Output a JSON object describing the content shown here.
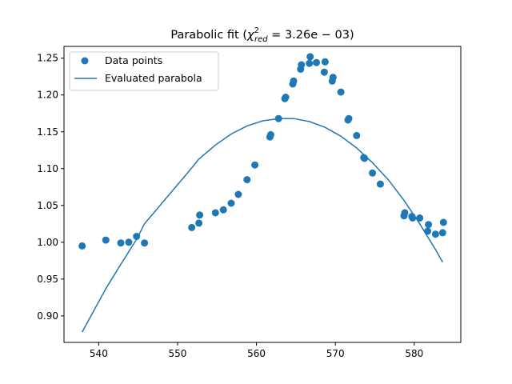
{
  "chart_data": {
    "type": "scatter",
    "title": {
      "prefix": "Parabolic fit (",
      "symbol": "χ",
      "superscript": "2",
      "subscript": "red",
      "value": " = 3.26e − 03)"
    },
    "xlabel": "",
    "ylabel": "",
    "xlim": [
      535.6,
      585.9
    ],
    "ylim": [
      0.864,
      1.266
    ],
    "xticks": [
      540,
      550,
      560,
      570,
      580
    ],
    "yticks": [
      0.9,
      0.95,
      1.0,
      1.05,
      1.1,
      1.15,
      1.2,
      1.25
    ],
    "xtick_labels": [
      "540",
      "550",
      "560",
      "570",
      "580"
    ],
    "ytick_labels": [
      "0.90",
      "0.95",
      "1.00",
      "1.05",
      "1.10",
      "1.15",
      "1.20",
      "1.25"
    ],
    "grid": false,
    "legend": {
      "position": "top-left",
      "entries": [
        {
          "name": "Data points",
          "marker": "circle"
        },
        {
          "name": "Evaluated parabola",
          "marker": "line"
        }
      ]
    },
    "colors": {
      "series": "#1f77b4"
    },
    "series": [
      {
        "name": "Data points",
        "type": "scatter",
        "x": [
          537.9,
          540.9,
          542.8,
          543.8,
          544.8,
          545.8,
          551.8,
          552.7,
          552.8,
          554.8,
          555.8,
          556.8,
          557.7,
          558.8,
          559.8,
          561.7,
          561.8,
          562.8,
          563.6,
          563.7,
          564.6,
          564.7,
          565.6,
          565.7,
          566.7,
          566.8,
          567.6,
          568.6,
          568.7,
          569.6,
          569.7,
          570.7,
          571.6,
          571.7,
          572.7,
          573.6,
          573.7,
          574.7,
          575.7,
          578.7,
          578.8,
          579.7,
          579.8,
          580.7,
          581.7,
          581.8,
          582.7,
          583.6,
          583.7
        ],
        "y": [
          0.995,
          1.003,
          0.999,
          1.0,
          1.008,
          0.999,
          1.02,
          1.026,
          1.037,
          1.04,
          1.044,
          1.053,
          1.065,
          1.085,
          1.105,
          1.143,
          1.146,
          1.168,
          1.195,
          1.197,
          1.215,
          1.219,
          1.235,
          1.241,
          1.243,
          1.252,
          1.244,
          1.231,
          1.245,
          1.219,
          1.224,
          1.204,
          1.166,
          1.168,
          1.145,
          1.115,
          1.114,
          1.094,
          1.079,
          1.036,
          1.04,
          1.035,
          1.033,
          1.033,
          1.015,
          1.024,
          1.011,
          1.013,
          1.027
        ]
      },
      {
        "name": "Evaluated parabola",
        "type": "line",
        "x": [
          537.9,
          540.9,
          542.8,
          543.8,
          544.8,
          545.8,
          551.8,
          552.7,
          554.8,
          556.8,
          558.8,
          560.8,
          562.8,
          564.7,
          566.7,
          568.7,
          570.7,
          572.7,
          574.7,
          576.7,
          578.7,
          580.7,
          582.7,
          583.6
        ],
        "y": [
          0.878,
          0.937,
          0.97,
          0.987,
          1.004,
          1.025,
          1.101,
          1.113,
          1.132,
          1.147,
          1.158,
          1.165,
          1.168,
          1.168,
          1.164,
          1.156,
          1.144,
          1.128,
          1.108,
          1.085,
          1.057,
          1.025,
          0.99,
          0.973
        ]
      }
    ]
  }
}
